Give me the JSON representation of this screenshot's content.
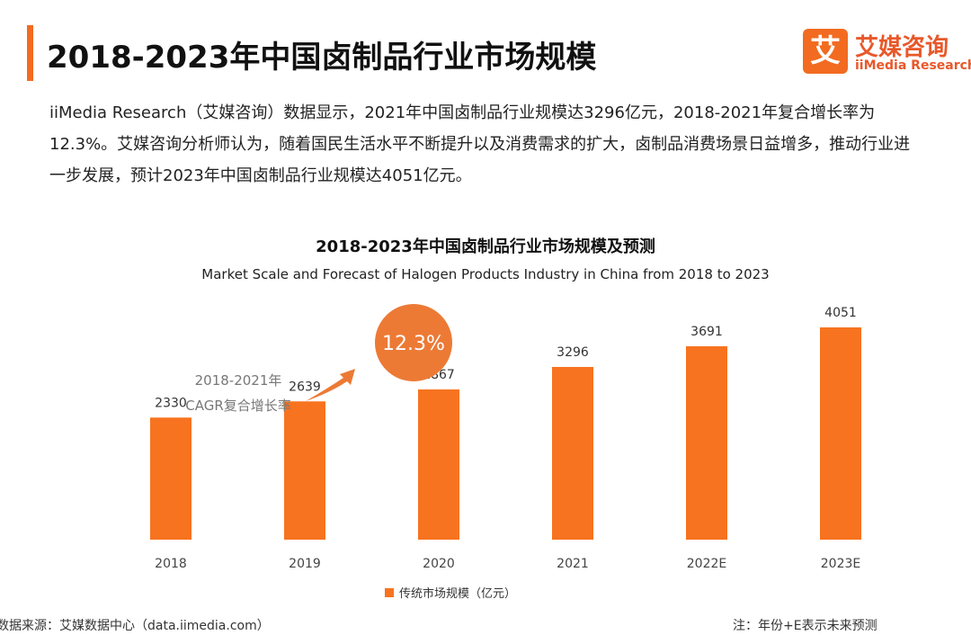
{
  "header": {
    "title": "2018-2023年中国卤制品行业市场规模",
    "logo_mark": "艾",
    "logo_cn": "艾媒咨询",
    "logo_en": "iiMedia Research"
  },
  "intro": "iiMedia Research（艾媒咨询）数据显示，2021年中国卤制品行业规模达3296亿元，2018-2021年复合增长率为12.3%。艾媒咨询分析师认为，随着国民生活水平不断提升以及消费需求的扩大，卤制品消费场景日益增多，推动行业进一步发展，预计2023年中国卤制品行业规模达4051亿元。",
  "colors": {
    "accent": "#f26b21",
    "bar": "#f7731f",
    "text": "#333333"
  },
  "chart_data": {
    "type": "bar",
    "title": "2018-2023年中国卤制品行业市场规模及预测",
    "subtitle": "Market Scale and Forecast of Halogen Products Industry in China from 2018  to 2023",
    "categories": [
      "2018",
      "2019",
      "2020",
      "2021",
      "2022E",
      "2023E"
    ],
    "series": [
      {
        "name": "传统市场规模（亿元）",
        "values": [
          2330,
          2639,
          2867,
          3296,
          3691,
          4051
        ]
      }
    ],
    "data_labels": [
      "2330",
      "2639",
      "2867",
      "3296",
      "3691",
      "4051"
    ],
    "ylim": [
      0,
      4300
    ],
    "legend_position": "bottom",
    "grid": false,
    "annotation": {
      "cagr_label_line1": "2018-2021年",
      "cagr_label_line2": "CAGR复合增长率",
      "cagr_value": "12.3%"
    }
  },
  "footer": {
    "source": "数据来源：艾媒数据中心（data.iimedia.com）",
    "note": "注：年份+E表示未来预测"
  }
}
